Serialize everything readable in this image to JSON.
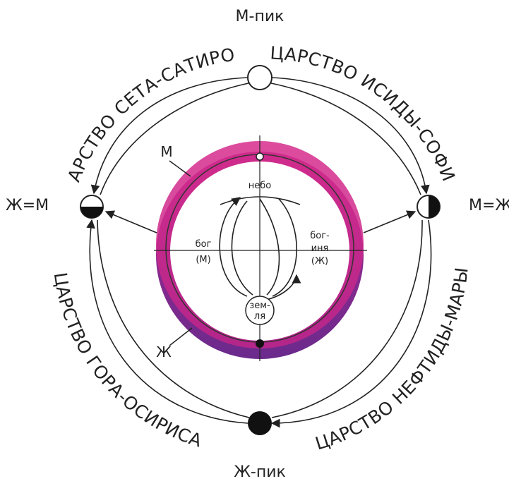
{
  "top_label": "М-пик",
  "bottom_label": "Ж-пик",
  "left_label": "Ж=М",
  "right_label": "М=Ж",
  "kingdoms": {
    "top_left": "ЦАРСТВО СЕТА-САТИРОВ",
    "top_right": "ЦАРСТВО ИСИДЫ-СОФИИ",
    "bottom_left": "ЦАРСТВО ГОРА-ОСИРИСА",
    "bottom_right": "ЦАРСТВО НЕФТИДЫ-МАРЫ"
  },
  "inner": {
    "m": "М",
    "zh": "Ж",
    "sky": "небо",
    "god": [
      "бог",
      "(М)"
    ],
    "goddess": [
      "бог-",
      "иня",
      "(Ж)"
    ],
    "earth": [
      "зем-",
      "ля"
    ]
  }
}
